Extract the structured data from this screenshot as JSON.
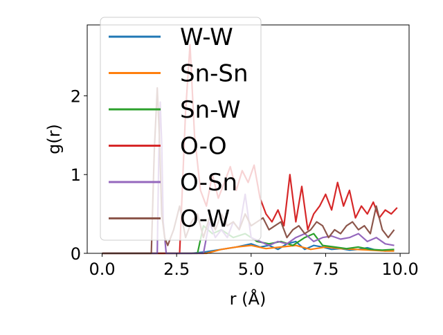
{
  "chart_data": {
    "type": "line",
    "xlabel": "r (Å)",
    "ylabel": "g(r)",
    "xlim": [
      -0.5,
      10.3
    ],
    "ylim": [
      0,
      2.9
    ],
    "xticks": [
      0.0,
      2.5,
      5.0,
      7.5,
      10.0
    ],
    "xtick_labels": [
      "0.0",
      "2.5",
      "5.0",
      "7.5",
      "10.0"
    ],
    "yticks": [
      0,
      1,
      2
    ],
    "ytick_labels": [
      "0",
      "1",
      "2"
    ],
    "grid": false,
    "legend_placement": "upper-left",
    "series": [
      {
        "name": "W-W",
        "color": "#1f77b4",
        "x": [
          0,
          3.0,
          3.5,
          4.0,
          4.5,
          5.0,
          5.3,
          5.6,
          5.9,
          6.2,
          6.5,
          6.8,
          7.1,
          7.4,
          7.7,
          8.0,
          8.3,
          8.6,
          8.9,
          9.2,
          9.5,
          9.8
        ],
        "y": [
          0,
          0,
          0.02,
          0.05,
          0.08,
          0.12,
          0.08,
          0.1,
          0.05,
          0.12,
          0.15,
          0.05,
          0.1,
          0.08,
          0.05,
          0.06,
          0.04,
          0.05,
          0.07,
          0.04,
          0.03,
          0.04
        ]
      },
      {
        "name": "Sn-Sn",
        "color": "#ff7f0e",
        "x": [
          0,
          3.5,
          4.0,
          4.5,
          5.0,
          5.5,
          6.0,
          6.5,
          7.0,
          7.5,
          8.0,
          8.5,
          9.0,
          9.5,
          9.8
        ],
        "y": [
          0,
          0,
          0.05,
          0.08,
          0.1,
          0.06,
          0.08,
          0.1,
          0.05,
          0.08,
          0.06,
          0.05,
          0.04,
          0.03,
          0.03
        ]
      },
      {
        "name": "Sn-W",
        "color": "#2ca02c",
        "x": [
          0,
          3.2,
          3.4,
          3.7,
          4.0,
          4.4,
          4.8,
          5.2,
          5.6,
          6.0,
          6.4,
          6.8,
          7.1,
          7.4,
          7.8,
          8.2,
          8.6,
          9.0,
          9.4,
          9.8
        ],
        "y": [
          0,
          0,
          0.35,
          0.25,
          0.3,
          0.2,
          0.25,
          0.15,
          0.12,
          0.15,
          0.1,
          0.2,
          0.25,
          0.1,
          0.08,
          0.06,
          0.08,
          0.05,
          0.04,
          0.05
        ]
      },
      {
        "name": "O-O",
        "color": "#d62728",
        "x": [
          0,
          2.6,
          2.8,
          2.95,
          3.1,
          3.3,
          3.5,
          3.7,
          3.9,
          4.1,
          4.3,
          4.5,
          4.7,
          4.9,
          5.1,
          5.3,
          5.5,
          5.7,
          5.9,
          6.1,
          6.3,
          6.5,
          6.7,
          6.9,
          7.1,
          7.3,
          7.5,
          7.7,
          7.9,
          8.1,
          8.3,
          8.5,
          8.7,
          8.9,
          9.1,
          9.3,
          9.5,
          9.7,
          9.9
        ],
        "y": [
          0,
          0,
          1.8,
          2.65,
          1.5,
          0.8,
          0.6,
          1.0,
          0.7,
          0.9,
          1.1,
          0.8,
          1.05,
          0.9,
          1.12,
          0.7,
          0.5,
          0.4,
          0.55,
          0.35,
          1.0,
          0.4,
          0.85,
          0.3,
          0.5,
          0.6,
          0.75,
          0.55,
          0.9,
          0.6,
          0.8,
          0.45,
          0.6,
          0.5,
          0.65,
          0.45,
          0.55,
          0.5,
          0.58
        ]
      },
      {
        "name": "O-Sn",
        "color": "#9467bd",
        "x": [
          0,
          1.85,
          1.9,
          1.95,
          2.0,
          2.05,
          2.15,
          3.4,
          3.6,
          3.8,
          4.0,
          4.2,
          4.4,
          4.6,
          4.8,
          5.0,
          5.3,
          5.6,
          5.9,
          6.2,
          6.5,
          6.8,
          7.1,
          7.4,
          7.7,
          8.0,
          8.3,
          8.6,
          8.9,
          9.2,
          9.5,
          9.8
        ],
        "y": [
          0,
          0,
          1.2,
          1.92,
          1.4,
          0.4,
          0,
          0,
          0.4,
          0.2,
          0.3,
          0.2,
          0.4,
          0.3,
          0.75,
          0.2,
          0.15,
          0.1,
          0.15,
          0.12,
          0.2,
          0.25,
          0.15,
          0.2,
          0.22,
          0.18,
          0.2,
          0.25,
          0.15,
          0.2,
          0.12,
          0.1
        ]
      },
      {
        "name": "O-W",
        "color": "#8c564b",
        "x": [
          0,
          1.65,
          1.75,
          1.85,
          1.92,
          2.0,
          2.1,
          2.2,
          2.4,
          2.6,
          2.8,
          3.0,
          3.2,
          3.4,
          3.6,
          3.8,
          4.0,
          4.2,
          4.4,
          4.6,
          4.8,
          5.0,
          5.2,
          5.4,
          5.6,
          5.8,
          6.0,
          6.2,
          6.4,
          6.6,
          6.8,
          7.0,
          7.2,
          7.4,
          7.6,
          7.8,
          8.0,
          8.2,
          8.4,
          8.6,
          8.8,
          9.0,
          9.2,
          9.4,
          9.6,
          9.8
        ],
        "y": [
          0,
          0,
          1.3,
          2.1,
          1.5,
          0.5,
          0.2,
          0.1,
          0.3,
          0.6,
          0.2,
          0.4,
          0.5,
          0.2,
          0.45,
          0.3,
          0.5,
          0.35,
          0.4,
          0.3,
          0.5,
          0.35,
          0.4,
          0.45,
          0.3,
          0.35,
          0.4,
          0.2,
          0.3,
          0.35,
          0.25,
          0.3,
          0.4,
          0.35,
          0.2,
          0.3,
          0.25,
          0.35,
          0.4,
          0.3,
          0.35,
          0.25,
          0.6,
          0.3,
          0.2,
          0.3
        ]
      }
    ]
  }
}
